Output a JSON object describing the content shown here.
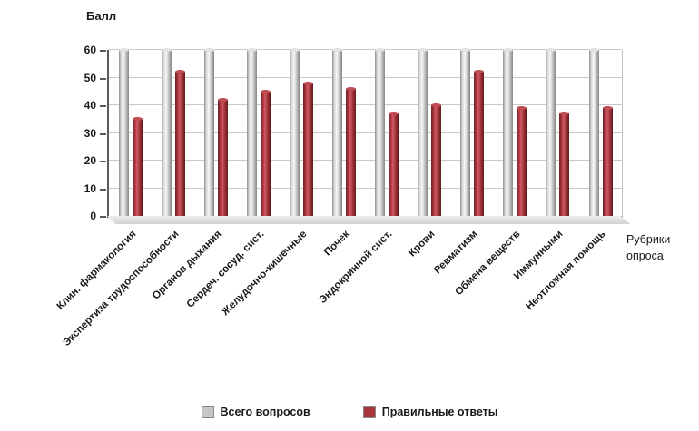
{
  "chart_data": {
    "type": "bar",
    "title": "",
    "ylabel": "Балл",
    "xlabel": "Рубрики опроса",
    "ylim": [
      0,
      60
    ],
    "ytick_step": 10,
    "grid": true,
    "legend_position": "bottom",
    "categories": [
      "Клин. фармакология",
      "Экспертиза трудоспособности",
      "Органов дыхания",
      "Сердеч. сосуд. сист.",
      "Желудочно-кишечные",
      "Почек",
      "Эндокринной сист.",
      "Крови",
      "Ревматизм",
      "Обмена веществ",
      "Иммунными",
      "Неотложная помощь"
    ],
    "series": [
      {
        "name": "Всего вопросов",
        "color": "#c6c6c6",
        "values": [
          60,
          60,
          60,
          60,
          60,
          60,
          60,
          60,
          60,
          60,
          60,
          60
        ]
      },
      {
        "name": "Правильные ответы",
        "color": "#a8343c",
        "values": [
          35,
          52,
          42,
          45,
          48,
          46,
          37,
          40,
          52,
          39,
          37,
          39
        ]
      }
    ]
  }
}
